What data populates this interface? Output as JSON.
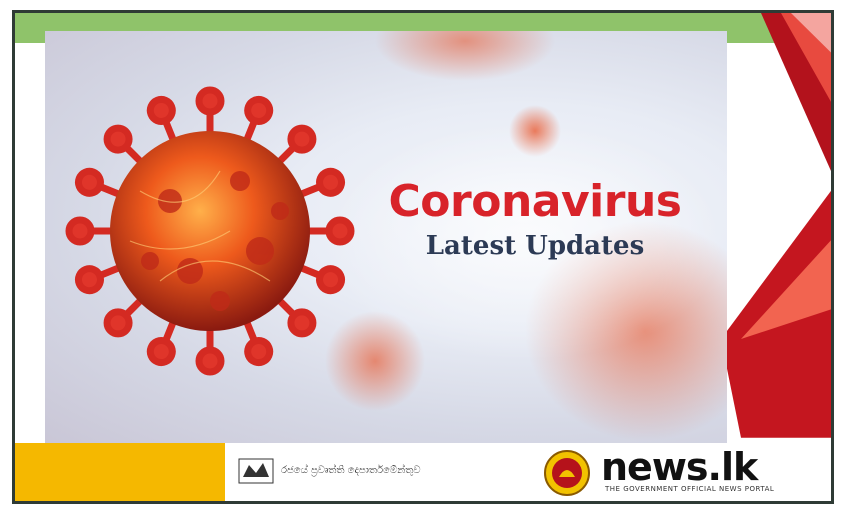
{
  "banner": {
    "title": "Coronavirus",
    "subtitle": "Latest Updates"
  },
  "footer": {
    "department_text": "රජයේ ප්‍රවෘත්ති දෙපාර්තමේන්තුව",
    "logo_text": "news.lk",
    "tagline": "THE GOVERNMENT OFFICIAL NEWS PORTAL"
  },
  "colors": {
    "title": "#d8232a",
    "subtitle": "#2c3a55",
    "green_strip": "#8fc36a",
    "footer_yellow": "#f5b800",
    "frame_border": "#2f3b35"
  },
  "icons": {
    "virus": "virus-icon",
    "department_emblem": "department-emblem-icon",
    "government_emblem": "government-emblem-icon"
  }
}
